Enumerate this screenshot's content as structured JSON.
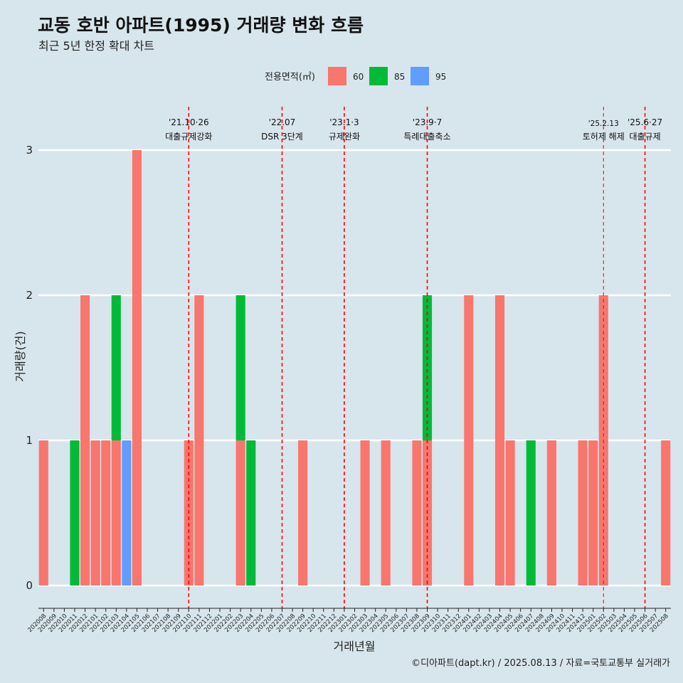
{
  "chart_data": {
    "type": "bar",
    "stacked": true,
    "title": "교동 호반 아파트(1995) 거래량 변화 흐름",
    "subtitle": "최근 5년 한정 확대 차트",
    "xlabel": "거래년월",
    "ylabel": "거래량(건)",
    "ylim": [
      0,
      3
    ],
    "yticks": [
      0,
      1,
      2,
      3
    ],
    "grid": true,
    "legend": {
      "title": "전용면적(㎡)",
      "placement": "top-center"
    },
    "categories": [
      "202008",
      "202009",
      "202010",
      "202011",
      "202012",
      "202101",
      "202102",
      "202103",
      "202104",
      "202105",
      "202106",
      "202107",
      "202108",
      "202109",
      "202110",
      "202111",
      "202112",
      "202201",
      "202202",
      "202203",
      "202204",
      "202205",
      "202206",
      "202207",
      "202208",
      "202209",
      "202210",
      "202211",
      "202212",
      "202301",
      "202302",
      "202303",
      "202304",
      "202305",
      "202306",
      "202307",
      "202308",
      "202309",
      "202310",
      "202311",
      "202312",
      "202401",
      "202402",
      "202403",
      "202404",
      "202405",
      "202406",
      "202407",
      "202408",
      "202409",
      "202410",
      "202411",
      "202412",
      "202501",
      "202502",
      "202503",
      "202504",
      "202505",
      "202506",
      "202507",
      "202508"
    ],
    "series": [
      {
        "name": "60",
        "color": "#f8766d",
        "values": [
          1,
          0,
          0,
          0,
          2,
          1,
          1,
          1,
          0,
          3,
          0,
          0,
          0,
          0,
          1,
          2,
          0,
          0,
          0,
          1,
          0,
          0,
          0,
          0,
          0,
          1,
          0,
          0,
          0,
          0,
          0,
          1,
          0,
          1,
          0,
          0,
          1,
          1,
          0,
          0,
          0,
          2,
          0,
          0,
          2,
          1,
          0,
          0,
          0,
          1,
          0,
          0,
          1,
          1,
          2,
          0,
          0,
          0,
          0,
          0,
          1
        ]
      },
      {
        "name": "85",
        "color": "#00ba38",
        "values": [
          0,
          0,
          0,
          1,
          0,
          0,
          0,
          1,
          0,
          0,
          0,
          0,
          0,
          0,
          0,
          0,
          0,
          0,
          0,
          1,
          1,
          0,
          0,
          0,
          0,
          0,
          0,
          0,
          0,
          0,
          0,
          0,
          0,
          0,
          0,
          0,
          0,
          1,
          0,
          0,
          0,
          0,
          0,
          0,
          0,
          0,
          0,
          1,
          0,
          0,
          0,
          0,
          0,
          0,
          0,
          0,
          0,
          0,
          0,
          0,
          0
        ]
      },
      {
        "name": "95",
        "color": "#619cff",
        "values": [
          0,
          0,
          0,
          0,
          0,
          0,
          0,
          0,
          1,
          0,
          0,
          0,
          0,
          0,
          0,
          0,
          0,
          0,
          0,
          0,
          0,
          0,
          0,
          0,
          0,
          0,
          0,
          0,
          0,
          0,
          0,
          0,
          0,
          0,
          0,
          0,
          0,
          0,
          0,
          0,
          0,
          0,
          0,
          0,
          0,
          0,
          0,
          0,
          0,
          0,
          0,
          0,
          0,
          0,
          0,
          0,
          0,
          0,
          0,
          0,
          0
        ]
      }
    ],
    "events": [
      {
        "date": "'21.10·26",
        "label": "대출규제강화",
        "month": "202110"
      },
      {
        "date": "'22.07",
        "label": "DSR 3단계",
        "month": "202207"
      },
      {
        "date": "'23.1·3",
        "label": "규제완화",
        "month": "202301"
      },
      {
        "date": "'23.9·7",
        "label": "특례대출축소",
        "month": "202309"
      },
      {
        "date": "'25.2.13",
        "label": "토허제 해제",
        "month": "202502"
      },
      {
        "date": "'25.6·27",
        "label": "대출규제",
        "month": "202506"
      }
    ],
    "event_color": "#ff0000"
  },
  "caption": "©디아파트(dapt.kr) / 2025.08.13 / 자료=국토교통부 실거래가"
}
